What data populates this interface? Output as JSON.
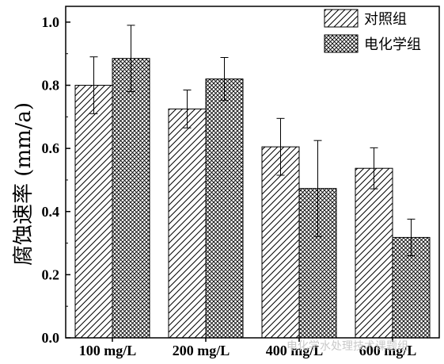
{
  "chart_data": {
    "type": "bar",
    "categories": [
      "100 mg/L",
      "200 mg/L",
      "400 mg/L",
      "600 mg/L"
    ],
    "series": [
      {
        "name": "对照组",
        "pattern": "hatch",
        "values": [
          0.8,
          0.725,
          0.605,
          0.537
        ],
        "errors": [
          0.09,
          0.06,
          0.09,
          0.065
        ]
      },
      {
        "name": "电化学组",
        "pattern": "crosshatch",
        "values": [
          0.885,
          0.82,
          0.473,
          0.318
        ],
        "errors": [
          0.105,
          0.068,
          0.152,
          0.058
        ]
      }
    ],
    "ylabel": "腐蚀速率 (mm/a)",
    "xlabel": "",
    "ylim": [
      0,
      1.05
    ],
    "yticks": [
      "0.0",
      "0.2",
      "0.4",
      "0.6",
      "0.8",
      "1.0"
    ],
    "ytick_values": [
      0,
      0.2,
      0.4,
      0.6,
      0.8,
      1.0
    ],
    "legend_position": "top-right",
    "grid": false
  },
  "watermark": "电化学水处理技术课题组"
}
